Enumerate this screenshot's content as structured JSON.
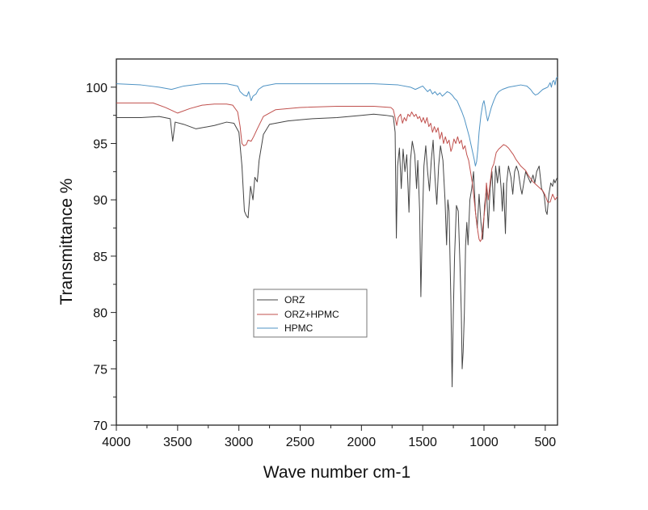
{
  "chart_data": {
    "type": "line",
    "xlabel": "Wave number cm-1",
    "ylabel": "Transmittance %",
    "xlim": [
      4000,
      400
    ],
    "ylim": [
      70,
      102.5
    ],
    "x_axis_reversed": true,
    "x_ticks": [
      4000,
      3500,
      3000,
      2500,
      2000,
      1500,
      1000,
      500
    ],
    "y_ticks": [
      70,
      75,
      80,
      85,
      90,
      95,
      100
    ],
    "grid": false,
    "legend_position": "lower-left",
    "series": [
      {
        "name": "ORZ",
        "color": "#444444",
        "points": [
          [
            4000,
            97.3
          ],
          [
            3800,
            97.3
          ],
          [
            3650,
            97.4
          ],
          [
            3560,
            97.2
          ],
          [
            3540,
            95.2
          ],
          [
            3520,
            96.9
          ],
          [
            3450,
            96.7
          ],
          [
            3350,
            96.3
          ],
          [
            3200,
            96.6
          ],
          [
            3100,
            96.9
          ],
          [
            3040,
            96.8
          ],
          [
            3000,
            96.0
          ],
          [
            2975,
            93.0
          ],
          [
            2955,
            89.0
          ],
          [
            2940,
            88.6
          ],
          [
            2925,
            88.4
          ],
          [
            2905,
            91.2
          ],
          [
            2885,
            90.0
          ],
          [
            2870,
            92.0
          ],
          [
            2850,
            91.6
          ],
          [
            2835,
            93.5
          ],
          [
            2800,
            95.8
          ],
          [
            2750,
            96.7
          ],
          [
            2600,
            97.0
          ],
          [
            2400,
            97.2
          ],
          [
            2200,
            97.3
          ],
          [
            2000,
            97.5
          ],
          [
            1900,
            97.6
          ],
          [
            1800,
            97.5
          ],
          [
            1740,
            97.4
          ],
          [
            1725,
            96.0
          ],
          [
            1715,
            86.6
          ],
          [
            1705,
            93.0
          ],
          [
            1690,
            94.6
          ],
          [
            1675,
            91.0
          ],
          [
            1660,
            94.5
          ],
          [
            1645,
            92.5
          ],
          [
            1630,
            94.0
          ],
          [
            1612,
            88.9
          ],
          [
            1600,
            93.5
          ],
          [
            1585,
            95.2
          ],
          [
            1565,
            94.0
          ],
          [
            1550,
            91.0
          ],
          [
            1540,
            93.5
          ],
          [
            1525,
            89.0
          ],
          [
            1515,
            81.4
          ],
          [
            1505,
            87.0
          ],
          [
            1490,
            93.0
          ],
          [
            1475,
            94.8
          ],
          [
            1460,
            92.5
          ],
          [
            1445,
            90.8
          ],
          [
            1430,
            93.5
          ],
          [
            1415,
            95.3
          ],
          [
            1400,
            92.0
          ],
          [
            1385,
            89.6
          ],
          [
            1370,
            93.0
          ],
          [
            1355,
            94.8
          ],
          [
            1335,
            93.5
          ],
          [
            1318,
            90.0
          ],
          [
            1305,
            86.0
          ],
          [
            1295,
            90.0
          ],
          [
            1285,
            89.0
          ],
          [
            1270,
            81.0
          ],
          [
            1260,
            73.4
          ],
          [
            1250,
            80.0
          ],
          [
            1240,
            85.0
          ],
          [
            1225,
            89.5
          ],
          [
            1210,
            89.0
          ],
          [
            1195,
            84.0
          ],
          [
            1185,
            80.0
          ],
          [
            1178,
            75.0
          ],
          [
            1170,
            76.5
          ],
          [
            1160,
            80.0
          ],
          [
            1150,
            86.0
          ],
          [
            1140,
            88.0
          ],
          [
            1130,
            86.0
          ],
          [
            1115,
            90.0
          ],
          [
            1100,
            91.0
          ],
          [
            1085,
            92.5
          ],
          [
            1070,
            89.0
          ],
          [
            1055,
            87.5
          ],
          [
            1040,
            90.5
          ],
          [
            1025,
            88.0
          ],
          [
            1010,
            86.5
          ],
          [
            995,
            89.5
          ],
          [
            980,
            91.0
          ],
          [
            965,
            87.5
          ],
          [
            950,
            91.0
          ],
          [
            935,
            92.5
          ],
          [
            920,
            89.0
          ],
          [
            905,
            93.0
          ],
          [
            890,
            91.5
          ],
          [
            875,
            93.0
          ],
          [
            860,
            91.0
          ],
          [
            850,
            89.0
          ],
          [
            840,
            91.5
          ],
          [
            825,
            87.0
          ],
          [
            815,
            91.5
          ],
          [
            800,
            93.0
          ],
          [
            780,
            92.0
          ],
          [
            765,
            90.5
          ],
          [
            750,
            92.5
          ],
          [
            735,
            93.0
          ],
          [
            720,
            92.5
          ],
          [
            700,
            91.0
          ],
          [
            690,
            90.5
          ],
          [
            675,
            91.5
          ],
          [
            660,
            92.5
          ],
          [
            640,
            92.0
          ],
          [
            620,
            91.5
          ],
          [
            600,
            92.2
          ],
          [
            585,
            91.5
          ],
          [
            570,
            92.5
          ],
          [
            550,
            93.0
          ],
          [
            530,
            91.0
          ],
          [
            510,
            90.5
          ],
          [
            495,
            89.0
          ],
          [
            485,
            88.7
          ],
          [
            470,
            90.5
          ],
          [
            455,
            91.5
          ],
          [
            440,
            91.2
          ],
          [
            430,
            91.8
          ],
          [
            420,
            91.5
          ],
          [
            410,
            91.8
          ],
          [
            400,
            92.0
          ]
        ]
      },
      {
        "name": "ORZ+HPMC",
        "color": "#c0504d",
        "points": [
          [
            4000,
            98.6
          ],
          [
            3800,
            98.6
          ],
          [
            3700,
            98.6
          ],
          [
            3600,
            98.2
          ],
          [
            3500,
            97.7
          ],
          [
            3400,
            98.1
          ],
          [
            3300,
            98.4
          ],
          [
            3200,
            98.5
          ],
          [
            3100,
            98.5
          ],
          [
            3050,
            98.4
          ],
          [
            3010,
            97.8
          ],
          [
            2990,
            96.5
          ],
          [
            2975,
            95.0
          ],
          [
            2960,
            94.8
          ],
          [
            2940,
            94.9
          ],
          [
            2925,
            95.3
          ],
          [
            2900,
            95.2
          ],
          [
            2880,
            95.6
          ],
          [
            2850,
            96.3
          ],
          [
            2800,
            97.4
          ],
          [
            2700,
            98.0
          ],
          [
            2500,
            98.2
          ],
          [
            2200,
            98.3
          ],
          [
            1900,
            98.3
          ],
          [
            1760,
            98.2
          ],
          [
            1740,
            98.0
          ],
          [
            1725,
            97.3
          ],
          [
            1712,
            96.6
          ],
          [
            1700,
            97.3
          ],
          [
            1680,
            97.6
          ],
          [
            1665,
            96.8
          ],
          [
            1650,
            97.3
          ],
          [
            1635,
            97.0
          ],
          [
            1620,
            97.6
          ],
          [
            1605,
            97.4
          ],
          [
            1590,
            97.8
          ],
          [
            1570,
            97.4
          ],
          [
            1555,
            97.6
          ],
          [
            1540,
            97.2
          ],
          [
            1525,
            97.4
          ],
          [
            1510,
            96.9
          ],
          [
            1495,
            97.3
          ],
          [
            1480,
            96.8
          ],
          [
            1465,
            97.3
          ],
          [
            1450,
            96.5
          ],
          [
            1435,
            96.8
          ],
          [
            1420,
            96.0
          ],
          [
            1405,
            96.5
          ],
          [
            1390,
            96.0
          ],
          [
            1375,
            96.4
          ],
          [
            1360,
            95.4
          ],
          [
            1345,
            96.0
          ],
          [
            1330,
            95.0
          ],
          [
            1315,
            95.6
          ],
          [
            1300,
            95.0
          ],
          [
            1285,
            95.3
          ],
          [
            1270,
            94.3
          ],
          [
            1260,
            94.6
          ],
          [
            1245,
            95.4
          ],
          [
            1230,
            95.0
          ],
          [
            1215,
            95.6
          ],
          [
            1200,
            95.0
          ],
          [
            1185,
            95.3
          ],
          [
            1170,
            94.5
          ],
          [
            1155,
            94.8
          ],
          [
            1140,
            94.0
          ],
          [
            1125,
            93.5
          ],
          [
            1110,
            92.5
          ],
          [
            1095,
            91.5
          ],
          [
            1080,
            90.0
          ],
          [
            1065,
            88.5
          ],
          [
            1050,
            87.2
          ],
          [
            1040,
            86.5
          ],
          [
            1030,
            86.3
          ],
          [
            1020,
            86.5
          ],
          [
            1010,
            87.5
          ],
          [
            1000,
            88.5
          ],
          [
            990,
            89.5
          ],
          [
            980,
            91.5
          ],
          [
            965,
            90.0
          ],
          [
            950,
            91.5
          ],
          [
            935,
            92.8
          ],
          [
            920,
            93.2
          ],
          [
            900,
            94.2
          ],
          [
            880,
            94.5
          ],
          [
            860,
            94.7
          ],
          [
            840,
            94.9
          ],
          [
            820,
            94.8
          ],
          [
            800,
            94.6
          ],
          [
            780,
            94.3
          ],
          [
            760,
            94.0
          ],
          [
            740,
            93.6
          ],
          [
            720,
            93.3
          ],
          [
            700,
            93.0
          ],
          [
            680,
            92.8
          ],
          [
            660,
            92.6
          ],
          [
            640,
            92.2
          ],
          [
            620,
            91.9
          ],
          [
            600,
            91.6
          ],
          [
            580,
            91.4
          ],
          [
            560,
            91.2
          ],
          [
            540,
            91.0
          ],
          [
            520,
            90.8
          ],
          [
            500,
            90.4
          ],
          [
            480,
            89.8
          ],
          [
            460,
            89.8
          ],
          [
            440,
            90.5
          ],
          [
            420,
            90.0
          ],
          [
            400,
            90.3
          ]
        ]
      },
      {
        "name": "HPMC",
        "color": "#4f93c4",
        "points": [
          [
            4000,
            100.3
          ],
          [
            3800,
            100.2
          ],
          [
            3650,
            100.0
          ],
          [
            3550,
            99.8
          ],
          [
            3450,
            100.1
          ],
          [
            3300,
            100.3
          ],
          [
            3100,
            100.3
          ],
          [
            3010,
            100.1
          ],
          [
            2990,
            99.6
          ],
          [
            2960,
            99.3
          ],
          [
            2935,
            99.2
          ],
          [
            2920,
            99.6
          ],
          [
            2900,
            98.8
          ],
          [
            2885,
            99.2
          ],
          [
            2860,
            99.4
          ],
          [
            2840,
            99.8
          ],
          [
            2800,
            100.1
          ],
          [
            2700,
            100.3
          ],
          [
            2500,
            100.3
          ],
          [
            2200,
            100.3
          ],
          [
            1900,
            100.3
          ],
          [
            1700,
            100.2
          ],
          [
            1600,
            100.0
          ],
          [
            1560,
            99.8
          ],
          [
            1540,
            99.9
          ],
          [
            1500,
            100.1
          ],
          [
            1460,
            99.6
          ],
          [
            1440,
            99.8
          ],
          [
            1420,
            99.4
          ],
          [
            1400,
            99.6
          ],
          [
            1380,
            99.3
          ],
          [
            1360,
            99.5
          ],
          [
            1340,
            99.2
          ],
          [
            1320,
            99.4
          ],
          [
            1300,
            99.6
          ],
          [
            1280,
            99.5
          ],
          [
            1260,
            99.3
          ],
          [
            1240,
            99.0
          ],
          [
            1220,
            98.8
          ],
          [
            1200,
            98.3
          ],
          [
            1180,
            97.8
          ],
          [
            1160,
            97.2
          ],
          [
            1140,
            96.4
          ],
          [
            1120,
            95.6
          ],
          [
            1100,
            94.6
          ],
          [
            1080,
            93.6
          ],
          [
            1070,
            93.0
          ],
          [
            1060,
            93.4
          ],
          [
            1050,
            94.5
          ],
          [
            1040,
            96.0
          ],
          [
            1025,
            97.5
          ],
          [
            1010,
            98.5
          ],
          [
            1000,
            98.8
          ],
          [
            990,
            98.2
          ],
          [
            980,
            97.5
          ],
          [
            970,
            97.0
          ],
          [
            955,
            97.6
          ],
          [
            940,
            98.2
          ],
          [
            920,
            98.8
          ],
          [
            900,
            99.3
          ],
          [
            880,
            99.6
          ],
          [
            850,
            99.8
          ],
          [
            800,
            100.0
          ],
          [
            750,
            100.1
          ],
          [
            700,
            100.2
          ],
          [
            650,
            100.1
          ],
          [
            620,
            99.8
          ],
          [
            600,
            99.5
          ],
          [
            580,
            99.3
          ],
          [
            560,
            99.4
          ],
          [
            540,
            99.6
          ],
          [
            520,
            99.8
          ],
          [
            500,
            99.9
          ],
          [
            480,
            100.0
          ],
          [
            470,
            100.2
          ],
          [
            460,
            100.4
          ],
          [
            450,
            100.0
          ],
          [
            440,
            100.5
          ],
          [
            430,
            100.6
          ],
          [
            420,
            100.2
          ],
          [
            410,
            100.8
          ],
          [
            400,
            100.9
          ]
        ]
      }
    ]
  }
}
